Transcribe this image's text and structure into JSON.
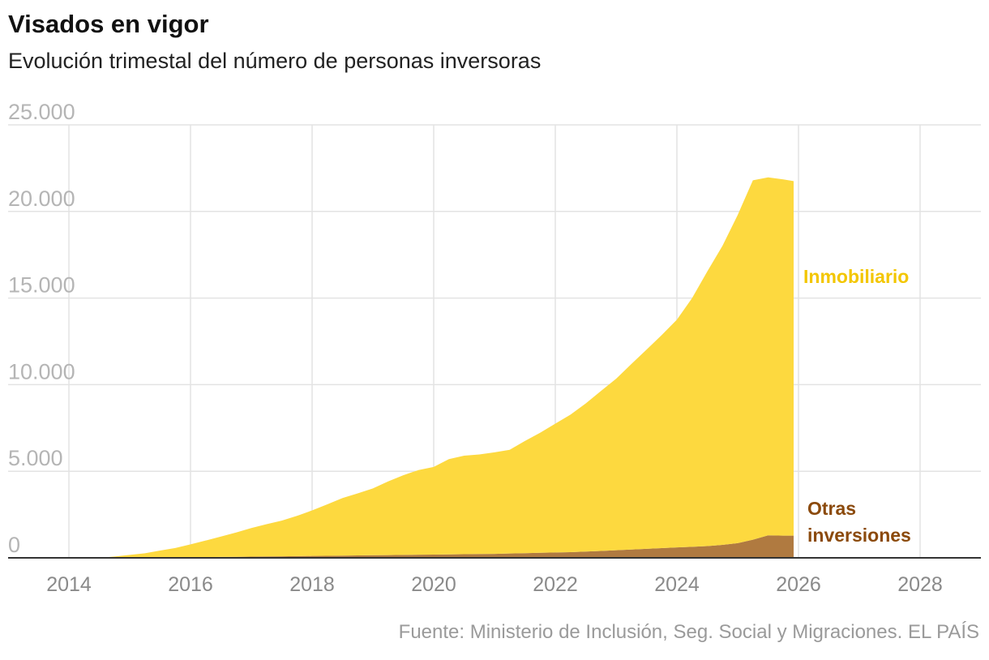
{
  "title": "Visados en vigor",
  "subtitle": "Evolución trimestal del número de personas inversoras",
  "source": "Fuente: Ministerio de Inclusión, Seg. Social y Migraciones. EL PAÍS",
  "chart_data": {
    "type": "area",
    "stacked": true,
    "title": "Visados en vigor",
    "subtitle": "Evolución trimestal del número de personas inversoras",
    "xlim": [
      2013,
      2029
    ],
    "ylim": [
      0,
      25000
    ],
    "x_ticks": [
      2014,
      2016,
      2018,
      2020,
      2022,
      2024,
      2026,
      2028
    ],
    "x_tick_labels": [
      "2014",
      "2016",
      "2018",
      "2020",
      "2022",
      "2024",
      "2026",
      "2028"
    ],
    "y_ticks": [
      0,
      5000,
      10000,
      15000,
      20000,
      25000
    ],
    "y_tick_labels": [
      "0",
      "5.000",
      "10.000",
      "15.000",
      "20.000",
      "25.000"
    ],
    "grid": true,
    "legend": "direct labels at right",
    "x": [
      2014.5,
      2014.75,
      2015.0,
      2015.25,
      2015.5,
      2015.75,
      2016.0,
      2016.25,
      2016.5,
      2016.75,
      2017.0,
      2017.25,
      2017.5,
      2017.75,
      2018.0,
      2018.25,
      2018.5,
      2018.75,
      2019.0,
      2019.25,
      2019.5,
      2019.75,
      2020.0,
      2020.25,
      2020.5,
      2020.75,
      2021.0,
      2021.25,
      2021.5,
      2021.75,
      2022.0,
      2022.25,
      2022.5,
      2022.75,
      2023.0,
      2023.25,
      2023.5,
      2023.75,
      2024.0,
      2024.25,
      2024.5,
      2024.75,
      2025.0,
      2025.25,
      2025.5,
      2025.75,
      2025.92
    ],
    "series": [
      {
        "name": "Otras inversiones",
        "color": "#b07a40",
        "label_color": "#8b4a0c",
        "values": [
          0,
          5,
          10,
          15,
          20,
          25,
          30,
          40,
          50,
          60,
          70,
          80,
          90,
          100,
          110,
          120,
          130,
          140,
          150,
          160,
          170,
          180,
          190,
          200,
          210,
          220,
          230,
          250,
          270,
          290,
          310,
          330,
          360,
          400,
          440,
          480,
          520,
          560,
          600,
          640,
          680,
          750,
          850,
          1050,
          1300,
          1280,
          1280
        ]
      },
      {
        "name": "Inmobiliario",
        "color": "#fdd93f",
        "label_color": "#f3c600",
        "values": [
          0,
          70,
          160,
          250,
          400,
          545,
          750,
          960,
          1180,
          1400,
          1650,
          1860,
          2060,
          2320,
          2630,
          2970,
          3320,
          3580,
          3860,
          4250,
          4600,
          4890,
          5060,
          5500,
          5690,
          5750,
          5860,
          5990,
          6480,
          6930,
          7440,
          7940,
          8550,
          9230,
          9900,
          10710,
          11500,
          12300,
          13150,
          14360,
          15860,
          17270,
          18950,
          20750,
          20670,
          20570,
          20470
        ]
      }
    ]
  }
}
